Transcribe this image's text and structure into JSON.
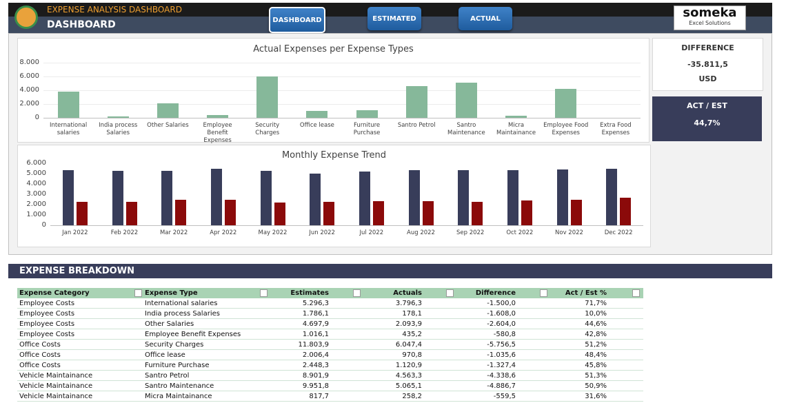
{
  "header": {
    "title": "EXPENSE ANALYSIS DASHBOARD",
    "subtitle": "DASHBOARD",
    "buttons": [
      "DASHBOARD",
      "ESTIMATED",
      "ACTUAL"
    ],
    "logo": {
      "name": "someka",
      "tagline": "Excel Solutions"
    }
  },
  "chart_data": [
    {
      "type": "bar",
      "title": "Actual Expenses per Expense Types",
      "categories": [
        "International salaries",
        "India process Salaries",
        "Other Salaries",
        "Employee Benefit Expenses",
        "Security Charges",
        "Office lease",
        "Furniture Purchase",
        "Santro Petrol",
        "Santro Maintenance",
        "Micra Maintainance",
        "Employee Food Expenses",
        "Extra Food Expenses"
      ],
      "values": [
        3796.3,
        178.1,
        2093.9,
        435.2,
        6047.4,
        970.8,
        1120.9,
        4563.3,
        5065.1,
        258.2,
        4200,
        0
      ],
      "color": "#86b89a",
      "ylim": [
        0,
        8000
      ],
      "yticks": [
        0,
        {
          "value": 2000,
          "label": "2.000"
        },
        {
          "value": 4000,
          "label": "4.000"
        },
        {
          "value": 6000,
          "label": "6.000"
        },
        {
          "value": 8000,
          "label": "8.000"
        }
      ],
      "grid": true
    },
    {
      "type": "bar",
      "title": "Monthly Expense Trend",
      "categories": [
        "Jan 2022",
        "Feb 2022",
        "Mar 2022",
        "Apr 2022",
        "May 2022",
        "Jun 2022",
        "Jul 2022",
        "Aug 2022",
        "Sep 2022",
        "Oct 2022",
        "Nov 2022",
        "Dec 2022"
      ],
      "series": [
        {
          "color": "#383d5a",
          "values": [
            5350,
            5250,
            5300,
            5450,
            5250,
            5000,
            5200,
            5350,
            5350,
            5350,
            5400,
            5500
          ]
        },
        {
          "color": "#8b0a0a",
          "values": [
            2300,
            2300,
            2450,
            2450,
            2200,
            2250,
            2350,
            2350,
            2300,
            2400,
            2450,
            2650
          ]
        }
      ],
      "ylim": [
        0,
        6000
      ],
      "yticks": [
        0,
        {
          "value": 1000,
          "label": "1.000"
        },
        {
          "value": 2000,
          "label": "2.000"
        },
        {
          "value": 3000,
          "label": "3.000"
        },
        {
          "value": 4000,
          "label": "4.000"
        },
        {
          "value": 5000,
          "label": "5.000"
        },
        {
          "value": 6000,
          "label": "6.000"
        }
      ],
      "grid": false
    }
  ],
  "kpis": {
    "difference": {
      "label": "DIFFERENCE",
      "value": "-35.811,5",
      "unit": "USD"
    },
    "ratio": {
      "label": "ACT / EST",
      "value": "44,7%"
    }
  },
  "section_title": "EXPENSE BREAKDOWN",
  "table": {
    "columns": [
      "Expense Category",
      "Expense Type",
      "Estimates",
      "Actuals",
      "Difference",
      "Act / Est %"
    ],
    "rows": [
      [
        "Employee Costs",
        "International salaries",
        "5.296,3",
        "3.796,3",
        "-1.500,0",
        "71,7%"
      ],
      [
        "Employee Costs",
        "India process Salaries",
        "1.786,1",
        "178,1",
        "-1.608,0",
        "10,0%"
      ],
      [
        "Employee Costs",
        "Other Salaries",
        "4.697,9",
        "2.093,9",
        "-2.604,0",
        "44,6%"
      ],
      [
        "Employee Costs",
        "Employee Benefit Expenses",
        "1.016,1",
        "435,2",
        "-580,8",
        "42,8%"
      ],
      [
        "Office Costs",
        "Security Charges",
        "11.803,9",
        "6.047,4",
        "-5.756,5",
        "51,2%"
      ],
      [
        "Office Costs",
        "Office lease",
        "2.006,4",
        "970,8",
        "-1.035,6",
        "48,4%"
      ],
      [
        "Office Costs",
        "Furniture Purchase",
        "2.448,3",
        "1.120,9",
        "-1.327,4",
        "45,8%"
      ],
      [
        "Vehicle Maintainance",
        "Santro Petrol",
        "8.901,9",
        "4.563,3",
        "-4.338,6",
        "51,3%"
      ],
      [
        "Vehicle Maintainance",
        "Santro Maintenance",
        "9.951,8",
        "5.065,1",
        "-4.886,7",
        "50,9%"
      ],
      [
        "Vehicle Maintainance",
        "Micra Maintainance",
        "817,7",
        "258,2",
        "-559,5",
        "31,6%"
      ]
    ]
  }
}
